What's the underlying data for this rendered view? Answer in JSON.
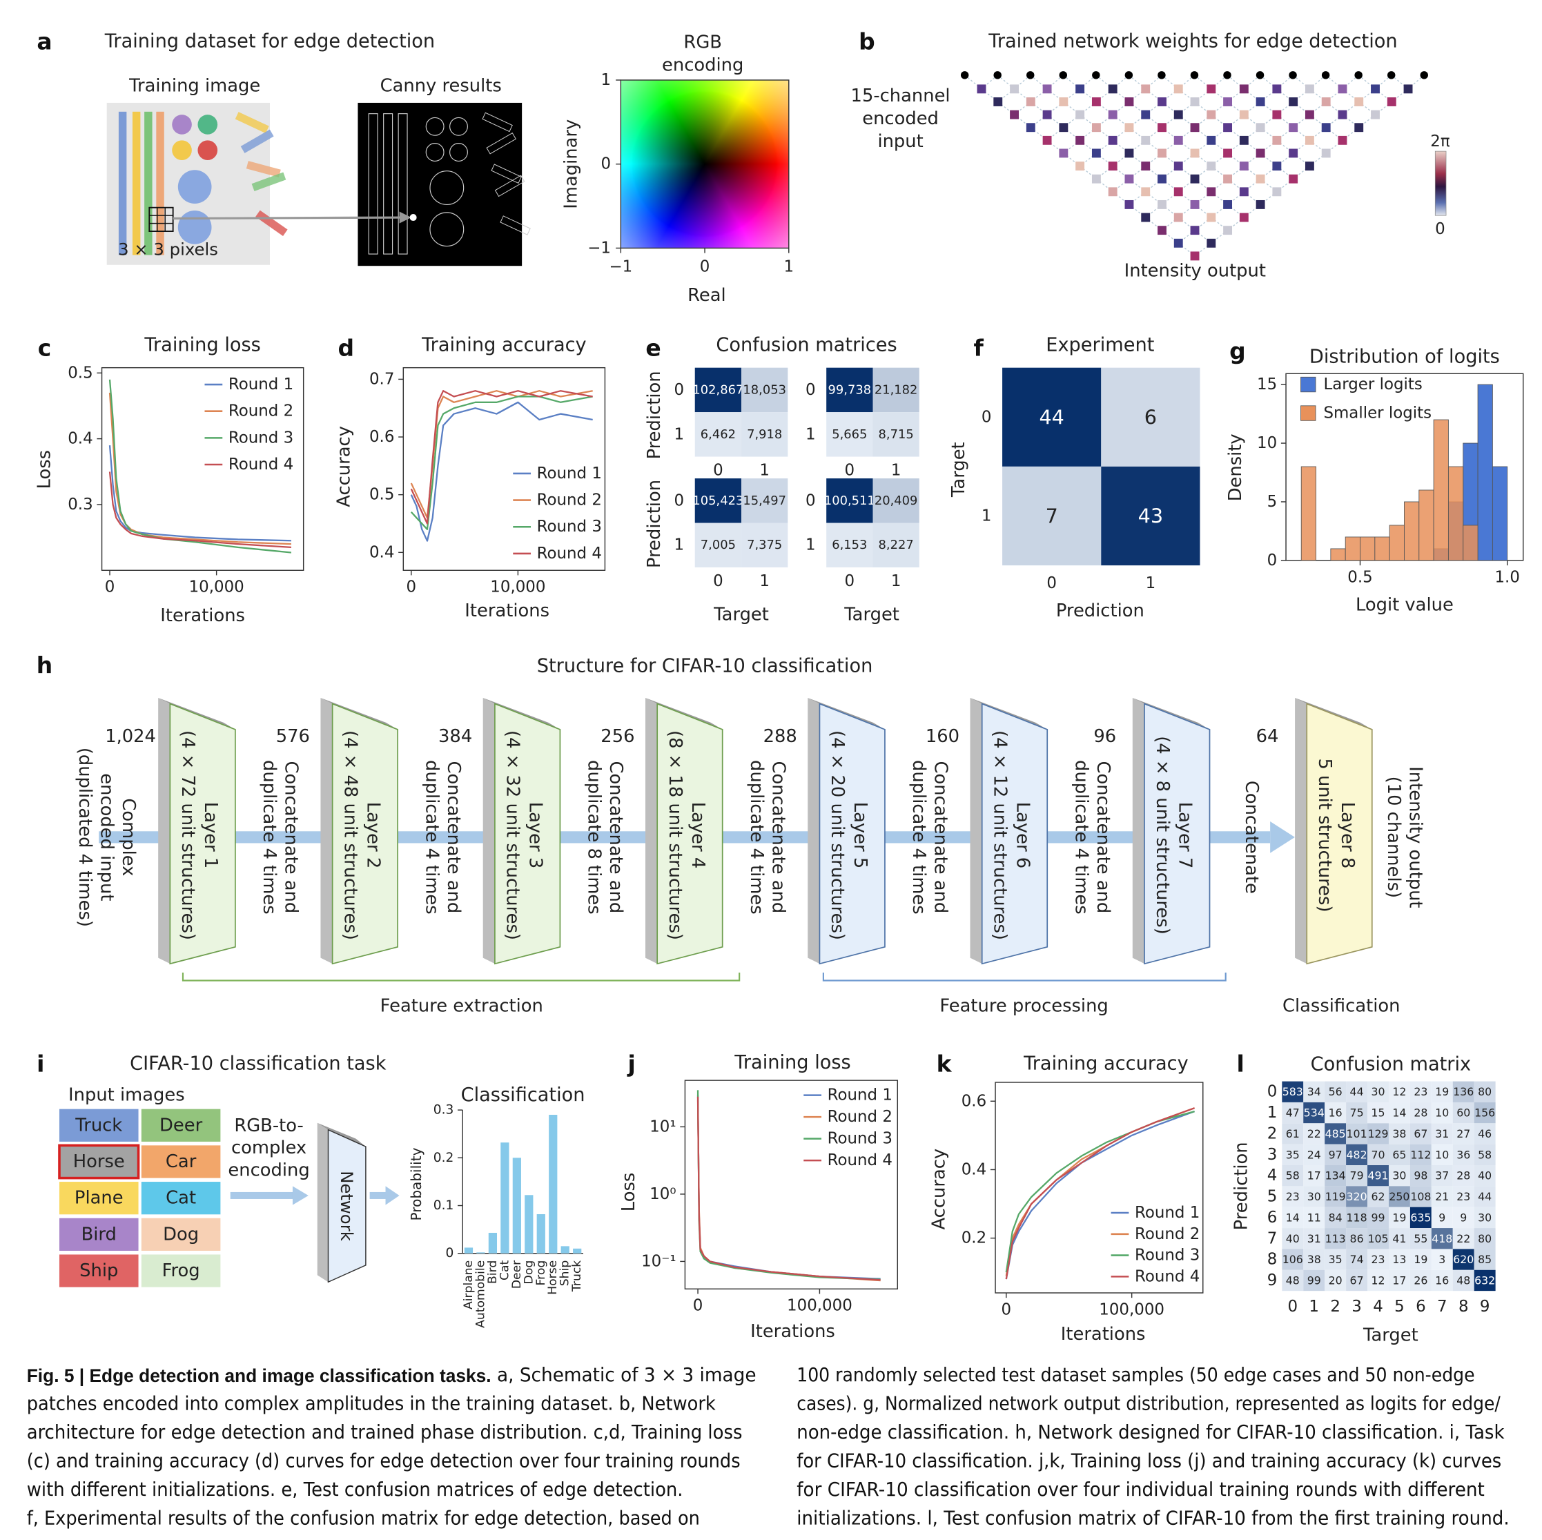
{
  "panels": {
    "a": {
      "letter": "a",
      "title": "Training dataset for edge detection",
      "training_image": "Training image",
      "patch": "3 × 3 pixels",
      "canny": "Canny results",
      "rgb": {
        "title": [
          "RGB",
          "encoding"
        ],
        "xlabel": "Real",
        "ylabel": "Imaginary",
        "xlim": [
          -1,
          1
        ],
        "xticks": [
          {
            "value": -1,
            "label": "−1"
          },
          0,
          1
        ],
        "ylim": [
          -1,
          1
        ],
        "yticks": [
          {
            "value": -1,
            "label": "−1"
          },
          0,
          1
        ]
      }
    },
    "b": {
      "letter": "b",
      "title": "Trained network weights for edge detection",
      "input": [
        "15-channel",
        "encoded",
        "input"
      ],
      "output": "Intensity output",
      "colorbar": [
        "2π",
        "0"
      ]
    },
    "h": {
      "letter": "h",
      "title": "Structure for CIFAR-10 classification",
      "layers": [
        {
          "name": "Layer 1",
          "size": "(4 × 72 unit structures)",
          "fill": "#eaf5e0",
          "stroke": "#6e9e4e"
        },
        {
          "name": "Layer 2",
          "size": "(4 × 48 unit structures)",
          "fill": "#eaf5e0",
          "stroke": "#6e9e4e"
        },
        {
          "name": "Layer 3",
          "size": "(4 × 32 unit structures)",
          "fill": "#eaf5e0",
          "stroke": "#6e9e4e"
        },
        {
          "name": "Layer 4",
          "size": "(8 × 18 unit structures)",
          "fill": "#eaf5e0",
          "stroke": "#6e9e4e"
        },
        {
          "name": "Layer 5",
          "size": "(4 × 20 unit structures)",
          "fill": "#e4eefa",
          "stroke": "#4f74a8"
        },
        {
          "name": "Layer 6",
          "size": "(4 × 12 unit structures)",
          "fill": "#e4eefa",
          "stroke": "#4f74a8"
        },
        {
          "name": "Layer 7",
          "size": "(4 × 8 unit structures)",
          "fill": "#e4eefa",
          "stroke": "#4f74a8"
        },
        {
          "name": "Layer 8",
          "size": "5 unit structures)",
          "fill": "#fbf8d2",
          "stroke": "#9a9660"
        }
      ],
      "gaps": [
        {
          "count": "1,024",
          "lines": [
            "Complex",
            "encoded input",
            "(duplicated 4 times)"
          ]
        },
        {
          "count": "576",
          "lines": [
            "Concatenate and",
            "duplicate 4 times"
          ]
        },
        {
          "count": "384",
          "lines": [
            "Concatenate and",
            "duplicate 4 times"
          ]
        },
        {
          "count": "256",
          "lines": [
            "Concatenate and",
            "duplicate 8 times"
          ]
        },
        {
          "count": "288",
          "lines": [
            "Concatenate and",
            "duplicate 4 times"
          ]
        },
        {
          "count": "160",
          "lines": [
            "Concatenate and",
            "duplicate 4 times"
          ]
        },
        {
          "count": "96",
          "lines": [
            "Concatenate and",
            "duplicate 4 times"
          ]
        },
        {
          "count": "64",
          "lines": [
            "Concatenate"
          ]
        }
      ],
      "output": [
        "Intensity output",
        "(10 channels)"
      ],
      "groups": [
        "Feature extraction",
        "Feature processing",
        "Classification"
      ]
    },
    "i": {
      "letter": "i",
      "title": "CIFAR-10 classification task",
      "inputs_title": "Input images",
      "inputs": [
        {
          "label": "Truck",
          "color": "#7b9bd6"
        },
        {
          "label": "Deer",
          "color": "#93c47d"
        },
        {
          "label": "Horse",
          "color": "#a3a3a3",
          "selected": true
        },
        {
          "label": "Car",
          "color": "#f2a66a"
        },
        {
          "label": "Plane",
          "color": "#f9d85e"
        },
        {
          "label": "Cat",
          "color": "#5ec8ea"
        },
        {
          "label": "Bird",
          "color": "#a885c9"
        },
        {
          "label": "Dog",
          "color": "#f7d0b4"
        },
        {
          "label": "Ship",
          "color": "#e06464"
        },
        {
          "label": "Frog",
          "color": "#d9ecd0"
        }
      ],
      "encoding": [
        "RGB-to-",
        "complex",
        "encoding"
      ],
      "network": "Network"
    }
  },
  "chart_data": [
    {
      "type": "line",
      "letter": "c",
      "title": "Training loss",
      "xlabel": "Iterations",
      "ylabel": "Loss",
      "x": [
        0,
        300,
        600,
        1000,
        1500,
        2000,
        3000,
        5000,
        8000,
        12000,
        17000
      ],
      "xlim": [
        -740,
        18150
      ],
      "xticks": [
        0,
        {
          "value": 10000,
          "label": "10,000"
        }
      ],
      "ylim": [
        0.2,
        0.508
      ],
      "yticks": [
        0.3,
        0.4,
        0.5
      ],
      "series": [
        {
          "name": "Round 1",
          "color": "#5a7fc4",
          "values": [
            0.39,
            0.33,
            0.29,
            0.275,
            0.265,
            0.26,
            0.257,
            0.254,
            0.25,
            0.247,
            0.245
          ]
        },
        {
          "name": "Round 2",
          "color": "#dd8452",
          "values": [
            0.47,
            0.4,
            0.32,
            0.285,
            0.27,
            0.262,
            0.255,
            0.25,
            0.247,
            0.243,
            0.24
          ]
        },
        {
          "name": "Round 3",
          "color": "#55a868",
          "values": [
            0.49,
            0.43,
            0.34,
            0.29,
            0.27,
            0.26,
            0.255,
            0.248,
            0.243,
            0.235,
            0.227
          ]
        },
        {
          "name": "Round 4",
          "color": "#c44e52",
          "values": [
            0.35,
            0.3,
            0.28,
            0.27,
            0.262,
            0.256,
            0.252,
            0.248,
            0.245,
            0.24,
            0.235
          ]
        }
      ]
    },
    {
      "type": "line",
      "letter": "d",
      "title": "Training accuracy",
      "xlabel": "Iterations",
      "ylabel": "Accuracy",
      "x": [
        0,
        500,
        1000,
        1500,
        2000,
        2500,
        3000,
        4000,
        6000,
        8000,
        10000,
        12000,
        14000,
        17000
      ],
      "xlim": [
        -740,
        18150
      ],
      "xticks": [
        0,
        {
          "value": 10000,
          "label": "10,000"
        }
      ],
      "ylim": [
        0.369,
        0.72
      ],
      "yticks": [
        0.4,
        0.5,
        0.6,
        0.7
      ],
      "series": [
        {
          "name": "Round 1",
          "color": "#5a7fc4",
          "values": [
            0.5,
            0.48,
            0.44,
            0.42,
            0.46,
            0.55,
            0.62,
            0.64,
            0.65,
            0.64,
            0.66,
            0.63,
            0.64,
            0.63
          ]
        },
        {
          "name": "Round 2",
          "color": "#dd8452",
          "values": [
            0.52,
            0.5,
            0.48,
            0.46,
            0.55,
            0.65,
            0.67,
            0.66,
            0.67,
            0.68,
            0.67,
            0.68,
            0.67,
            0.68
          ]
        },
        {
          "name": "Round 3",
          "color": "#55a868",
          "values": [
            0.47,
            0.46,
            0.45,
            0.44,
            0.52,
            0.62,
            0.64,
            0.65,
            0.66,
            0.66,
            0.67,
            0.67,
            0.66,
            0.67
          ]
        },
        {
          "name": "Round 4",
          "color": "#c44e52",
          "values": [
            0.51,
            0.49,
            0.47,
            0.45,
            0.56,
            0.66,
            0.68,
            0.67,
            0.68,
            0.67,
            0.68,
            0.67,
            0.68,
            0.67
          ]
        }
      ]
    },
    {
      "type": "heatmap",
      "letter": "e",
      "title": "Confusion matrices",
      "ylabel": "Prediction",
      "xlabel": "Target",
      "ticks": [
        0,
        1
      ],
      "matrices": [
        {
          "values": [
            [
              102867,
              18053
            ],
            [
              6462,
              7918
            ]
          ],
          "value_labels": [
            [
              "102,867",
              "18,053"
            ],
            [
              "6,462",
              "7,918"
            ]
          ]
        },
        {
          "values": [
            [
              99738,
              21182
            ],
            [
              5665,
              8715
            ]
          ],
          "value_labels": [
            [
              "99,738",
              "21,182"
            ],
            [
              "5,665",
              "8,715"
            ]
          ]
        },
        {
          "values": [
            [
              105423,
              15497
            ],
            [
              7005,
              7375
            ]
          ],
          "value_labels": [
            [
              "105,423",
              "15,497"
            ],
            [
              "7,005",
              "7,375"
            ]
          ]
        },
        {
          "values": [
            [
              100511,
              20409
            ],
            [
              6153,
              8227
            ]
          ],
          "value_labels": [
            [
              "100,511",
              "20,409"
            ],
            [
              "6,153",
              "8,227"
            ]
          ]
        }
      ]
    },
    {
      "type": "heatmap",
      "letter": "f",
      "title": "Experiment",
      "ylabel": "Target",
      "xlabel": "Prediction",
      "ticks": [
        0,
        1
      ],
      "values": [
        [
          44,
          6
        ],
        [
          7,
          43
        ]
      ]
    },
    {
      "type": "histogram",
      "letter": "g",
      "title": "Distribution of logits",
      "xlabel": "Logit value",
      "ylabel": "Density",
      "bins": [
        0.3,
        0.35,
        0.4,
        0.45,
        0.5,
        0.55,
        0.6,
        0.65,
        0.7,
        0.75,
        0.8,
        0.85,
        0.9,
        0.95,
        1.0
      ],
      "xlim": [
        0.248,
        1.054
      ],
      "xticks": [
        0.5,
        {
          "value": 1.0,
          "label": "1.0"
        }
      ],
      "ylim": [
        0,
        15.93
      ],
      "yticks": [
        0,
        5,
        10,
        15
      ],
      "series": [
        {
          "name": "Larger logits",
          "color": "#4a78d4",
          "values": [
            0,
            0,
            0,
            0,
            0,
            0,
            0,
            0,
            0,
            1,
            5,
            10,
            15,
            8
          ]
        },
        {
          "name": "Smaller logits",
          "color": "#e8915a",
          "values": [
            8,
            0,
            1,
            2,
            2,
            2,
            3,
            5,
            6,
            12,
            8,
            3,
            0,
            0
          ]
        }
      ]
    },
    {
      "type": "bar",
      "title": "Classification",
      "ylabel": "Probability",
      "color": "#85c9ea",
      "categories": [
        "Airplane",
        "Automobile",
        "Bird",
        "Cat",
        "Deer",
        "Dog",
        "Frog",
        "Horse",
        "Ship",
        "Truck"
      ],
      "values": [
        0.012,
        0.002,
        0.043,
        0.232,
        0.2,
        0.122,
        0.082,
        0.29,
        0.015,
        0.01
      ],
      "ylim": [
        0,
        0.3
      ],
      "yticks": [
        0,
        0.1,
        0.2,
        0.3
      ]
    },
    {
      "type": "line",
      "letter": "j",
      "title": "Training loss",
      "xlabel": "Iterations",
      "ylabel": "Loss",
      "ylog": true,
      "x": [
        0,
        1000,
        2000,
        5000,
        10000,
        30000,
        60000,
        100000,
        150000
      ],
      "xlim": [
        -10570,
        164000
      ],
      "xticks": [
        0,
        {
          "value": 100000,
          "label": "100,000"
        }
      ],
      "ylim": [
        0.039,
        49
      ],
      "yticks": [
        {
          "value": 0.1,
          "label": "10⁻¹"
        },
        {
          "value": 1,
          "label": "10⁰"
        },
        {
          "value": 10,
          "label": "10¹"
        }
      ],
      "series": [
        {
          "name": "Round 1",
          "color": "#5a7fc4",
          "values": [
            30,
            0.5,
            0.15,
            0.11,
            0.1,
            0.085,
            0.07,
            0.06,
            0.055
          ]
        },
        {
          "name": "Round 2",
          "color": "#dd8452",
          "values": [
            25,
            0.6,
            0.16,
            0.12,
            0.1,
            0.08,
            0.07,
            0.06,
            0.052
          ]
        },
        {
          "name": "Round 3",
          "color": "#55a868",
          "values": [
            35,
            0.4,
            0.14,
            0.11,
            0.095,
            0.08,
            0.068,
            0.058,
            0.054
          ]
        },
        {
          "name": "Round 4",
          "color": "#c44e52",
          "values": [
            28,
            0.5,
            0.15,
            0.12,
            0.1,
            0.082,
            0.07,
            0.06,
            0.053
          ]
        }
      ]
    },
    {
      "type": "line",
      "letter": "k",
      "title": "Training accuracy",
      "xlabel": "Iterations",
      "ylabel": "Accuracy",
      "x": [
        0,
        5000,
        10000,
        20000,
        40000,
        60000,
        80000,
        100000,
        120000,
        150000
      ],
      "xlim": [
        -8660,
        156700
      ],
      "xticks": [
        0,
        {
          "value": 100000,
          "label": "100,000"
        }
      ],
      "ylim": [
        0.04,
        0.655
      ],
      "yticks": [
        0.2,
        0.4,
        0.6
      ],
      "series": [
        {
          "name": "Round 1",
          "color": "#5a7fc4",
          "values": [
            0.08,
            0.18,
            0.22,
            0.28,
            0.36,
            0.42,
            0.46,
            0.5,
            0.53,
            0.57
          ]
        },
        {
          "name": "Round 2",
          "color": "#dd8452",
          "values": [
            0.09,
            0.2,
            0.24,
            0.3,
            0.37,
            0.43,
            0.47,
            0.51,
            0.54,
            0.58
          ]
        },
        {
          "name": "Round 3",
          "color": "#55a868",
          "values": [
            0.1,
            0.22,
            0.27,
            0.32,
            0.39,
            0.44,
            0.48,
            0.51,
            0.54,
            0.57
          ]
        },
        {
          "name": "Round 4",
          "color": "#c44e52",
          "values": [
            0.08,
            0.19,
            0.23,
            0.3,
            0.37,
            0.42,
            0.47,
            0.51,
            0.54,
            0.58
          ]
        }
      ]
    },
    {
      "type": "heatmap",
      "letter": "l",
      "title": "Confusion matrix",
      "ylabel": "Prediction",
      "xlabel": "Target",
      "ticks": [
        0,
        1,
        2,
        3,
        4,
        5,
        6,
        7,
        8,
        9
      ],
      "values": [
        [
          583,
          34,
          56,
          44,
          30,
          12,
          23,
          19,
          136,
          80
        ],
        [
          47,
          534,
          16,
          75,
          15,
          14,
          28,
          10,
          60,
          156
        ],
        [
          61,
          22,
          485,
          101,
          129,
          38,
          67,
          31,
          27,
          46
        ],
        [
          35,
          24,
          97,
          482,
          70,
          65,
          112,
          10,
          36,
          58
        ],
        [
          58,
          17,
          134,
          79,
          491,
          30,
          98,
          37,
          28,
          40
        ],
        [
          23,
          30,
          119,
          320,
          62,
          250,
          108,
          21,
          23,
          44
        ],
        [
          14,
          11,
          84,
          118,
          99,
          19,
          635,
          9,
          9,
          30
        ],
        [
          40,
          31,
          113,
          86,
          105,
          41,
          55,
          418,
          22,
          80
        ],
        [
          106,
          38,
          35,
          74,
          23,
          13,
          19,
          3,
          620,
          85
        ],
        [
          48,
          99,
          20,
          67,
          12,
          17,
          26,
          16,
          48,
          632
        ]
      ]
    }
  ],
  "caption": {
    "heading": "Fig. 5 | Edge detection and image classification tasks.",
    "col1": [
      " a, Schematic of 3 × 3 image",
      "patches encoded into complex amplitudes in the training dataset. b, Network",
      "architecture for edge detection and trained phase distribution. c,d, Training loss",
      "(c) and training accuracy (d) curves for edge detection over four training rounds",
      "with different initializations. e, Test confusion matrices of edge detection.",
      "f, Experimental results of the confusion matrix for edge detection, based on"
    ],
    "col2": [
      "100 randomly selected test dataset samples (50 edge cases and 50 non-edge",
      "cases). g, Normalized network output distribution, represented as logits for edge/",
      "non-edge classification. h, Network designed for CIFAR-10 classification. i, Task",
      "for CIFAR-10 classification. j,k, Training loss (j) and training accuracy (k) curves",
      "for CIFAR-10 classification over four individual training rounds with different",
      "initializations. l, Test confusion matrix of CIFAR-10 from the first training round."
    ]
  }
}
